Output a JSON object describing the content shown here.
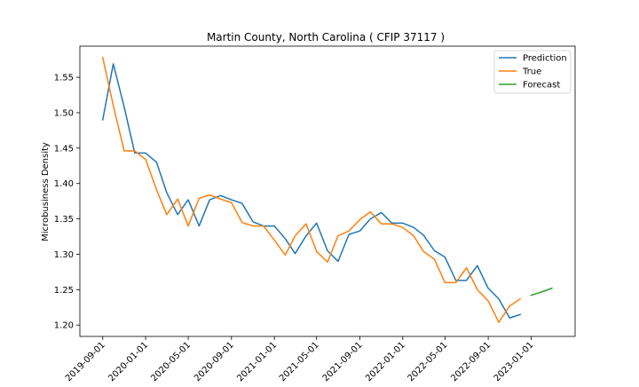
{
  "chart_data": {
    "type": "line",
    "title": "Martin County, North Carolina ( CFIP 37117 )",
    "xlabel": "",
    "ylabel": "Microbusiness Density",
    "x_ticks": [
      "2019-09-01",
      "2020-01-01",
      "2020-05-01",
      "2020-09-01",
      "2021-01-01",
      "2021-05-01",
      "2021-09-01",
      "2022-01-01",
      "2022-05-01",
      "2022-09-01",
      "2023-01-01"
    ],
    "y_ticks": [
      "1.20",
      "1.25",
      "1.30",
      "1.35",
      "1.40",
      "1.45",
      "1.50",
      "1.55"
    ],
    "xlim": [
      "2019-06-28",
      "2023-05-06"
    ],
    "ylim": [
      1.184,
      1.594
    ],
    "legend_position": "top-right",
    "colors": {
      "Prediction": "#1f77b4",
      "True": "#ff7f0e",
      "Forecast": "#2ca02c"
    },
    "series": [
      {
        "name": "Prediction",
        "points": [
          [
            "2019-09-01",
            1.49
          ],
          [
            "2019-10-01",
            1.569
          ],
          [
            "2019-11-01",
            1.508
          ],
          [
            "2019-12-01",
            1.443
          ],
          [
            "2020-01-01",
            1.443
          ],
          [
            "2020-02-01",
            1.43
          ],
          [
            "2020-03-01",
            1.387
          ],
          [
            "2020-04-01",
            1.356
          ],
          [
            "2020-05-01",
            1.377
          ],
          [
            "2020-06-01",
            1.34
          ],
          [
            "2020-07-01",
            1.377
          ],
          [
            "2020-08-01",
            1.383
          ],
          [
            "2020-09-01",
            1.377
          ],
          [
            "2020-10-01",
            1.372
          ],
          [
            "2020-11-01",
            1.346
          ],
          [
            "2020-12-01",
            1.34
          ],
          [
            "2021-01-01",
            1.34
          ],
          [
            "2021-02-01",
            1.322
          ],
          [
            "2021-03-01",
            1.301
          ],
          [
            "2021-04-01",
            1.326
          ],
          [
            "2021-05-01",
            1.344
          ],
          [
            "2021-06-01",
            1.305
          ],
          [
            "2021-07-01",
            1.29
          ],
          [
            "2021-08-01",
            1.328
          ],
          [
            "2021-09-01",
            1.333
          ],
          [
            "2021-10-01",
            1.35
          ],
          [
            "2021-11-01",
            1.359
          ],
          [
            "2021-12-01",
            1.344
          ],
          [
            "2022-01-01",
            1.344
          ],
          [
            "2022-02-01",
            1.338
          ],
          [
            "2022-03-01",
            1.327
          ],
          [
            "2022-04-01",
            1.305
          ],
          [
            "2022-05-01",
            1.296
          ],
          [
            "2022-06-01",
            1.263
          ],
          [
            "2022-07-01",
            1.263
          ],
          [
            "2022-08-01",
            1.284
          ],
          [
            "2022-09-01",
            1.252
          ],
          [
            "2022-10-01",
            1.237
          ],
          [
            "2022-11-01",
            1.21
          ],
          [
            "2022-12-01",
            1.215
          ]
        ]
      },
      {
        "name": "True",
        "points": [
          [
            "2019-09-01",
            1.578
          ],
          [
            "2019-10-01",
            1.51
          ],
          [
            "2019-11-01",
            1.446
          ],
          [
            "2019-12-01",
            1.446
          ],
          [
            "2020-01-01",
            1.434
          ],
          [
            "2020-02-01",
            1.391
          ],
          [
            "2020-03-01",
            1.356
          ],
          [
            "2020-04-01",
            1.378
          ],
          [
            "2020-05-01",
            1.34
          ],
          [
            "2020-06-01",
            1.379
          ],
          [
            "2020-07-01",
            1.384
          ],
          [
            "2020-08-01",
            1.378
          ],
          [
            "2020-09-01",
            1.373
          ],
          [
            "2020-10-01",
            1.345
          ],
          [
            "2020-11-01",
            1.34
          ],
          [
            "2020-12-01",
            1.34
          ],
          [
            "2021-01-01",
            1.32
          ],
          [
            "2021-02-01",
            1.299
          ],
          [
            "2021-03-01",
            1.326
          ],
          [
            "2021-04-01",
            1.343
          ],
          [
            "2021-05-01",
            1.304
          ],
          [
            "2021-06-01",
            1.289
          ],
          [
            "2021-07-01",
            1.326
          ],
          [
            "2021-08-01",
            1.333
          ],
          [
            "2021-09-01",
            1.349
          ],
          [
            "2021-10-01",
            1.36
          ],
          [
            "2021-11-01",
            1.343
          ],
          [
            "2021-12-01",
            1.343
          ],
          [
            "2022-01-01",
            1.338
          ],
          [
            "2022-02-01",
            1.326
          ],
          [
            "2022-03-01",
            1.304
          ],
          [
            "2022-04-01",
            1.293
          ],
          [
            "2022-05-01",
            1.26
          ],
          [
            "2022-06-01",
            1.26
          ],
          [
            "2022-07-01",
            1.281
          ],
          [
            "2022-08-01",
            1.25
          ],
          [
            "2022-09-01",
            1.234
          ],
          [
            "2022-10-01",
            1.204
          ],
          [
            "2022-11-01",
            1.227
          ],
          [
            "2022-12-01",
            1.237
          ]
        ]
      },
      {
        "name": "Forecast",
        "points": [
          [
            "2023-01-01",
            1.242
          ],
          [
            "2023-02-01",
            1.247
          ],
          [
            "2023-03-01",
            1.252
          ]
        ]
      }
    ]
  }
}
